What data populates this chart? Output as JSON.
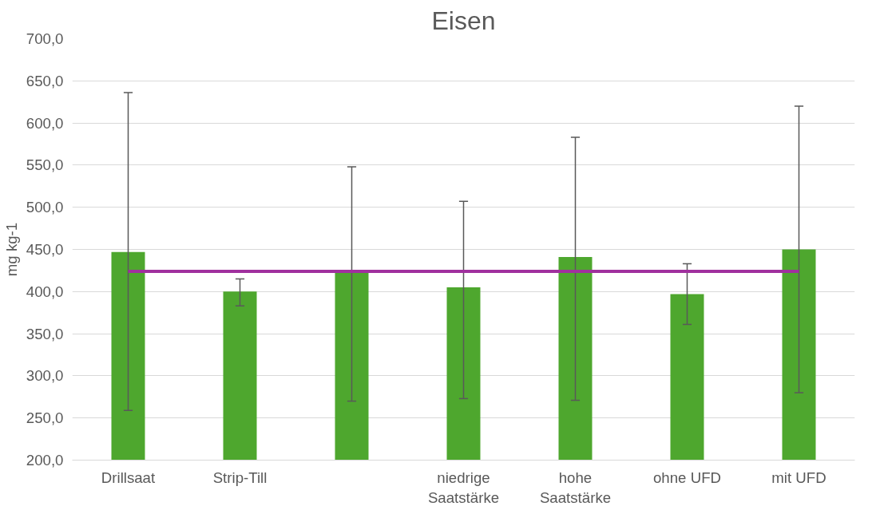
{
  "chart_data": {
    "type": "bar",
    "title": "Eisen",
    "ylabel": "mg kg-1",
    "categories": [
      "Drillsaat",
      "Strip-Till",
      null,
      "niedrige Saatstärke",
      "hohe Saatstärke",
      "ohne UFD",
      "mit UFD"
    ],
    "series": [
      {
        "color": "#4ea72e",
        "values": [
          447,
          400,
          423,
          405,
          441,
          397,
          450
        ],
        "errors": [
          [
            259,
            636
          ],
          [
            383,
            415
          ],
          [
            270,
            548
          ],
          [
            273,
            507
          ],
          [
            271,
            583
          ],
          [
            361,
            433
          ],
          [
            280,
            620
          ]
        ]
      },
      {
        "type": "line",
        "color": "#a0309e",
        "values": [
          424,
          424,
          424,
          424,
          424,
          424,
          424
        ]
      }
    ],
    "ylim": [
      200,
      700
    ],
    "yticks": [
      {
        "value": 200,
        "label": "200,0"
      },
      {
        "value": 250,
        "label": "250,0"
      },
      {
        "value": 300,
        "label": "300,0"
      },
      {
        "value": 350,
        "label": "350,0"
      },
      {
        "value": 400,
        "label": "400,0"
      },
      {
        "value": 450,
        "label": "450,0"
      },
      {
        "value": 500,
        "label": "500,0"
      },
      {
        "value": 550,
        "label": "550,0"
      },
      {
        "value": 600,
        "label": "600,0"
      },
      {
        "value": 650,
        "label": "650,0"
      },
      {
        "value": 700,
        "label": "700,0"
      }
    ],
    "grid": "y"
  }
}
